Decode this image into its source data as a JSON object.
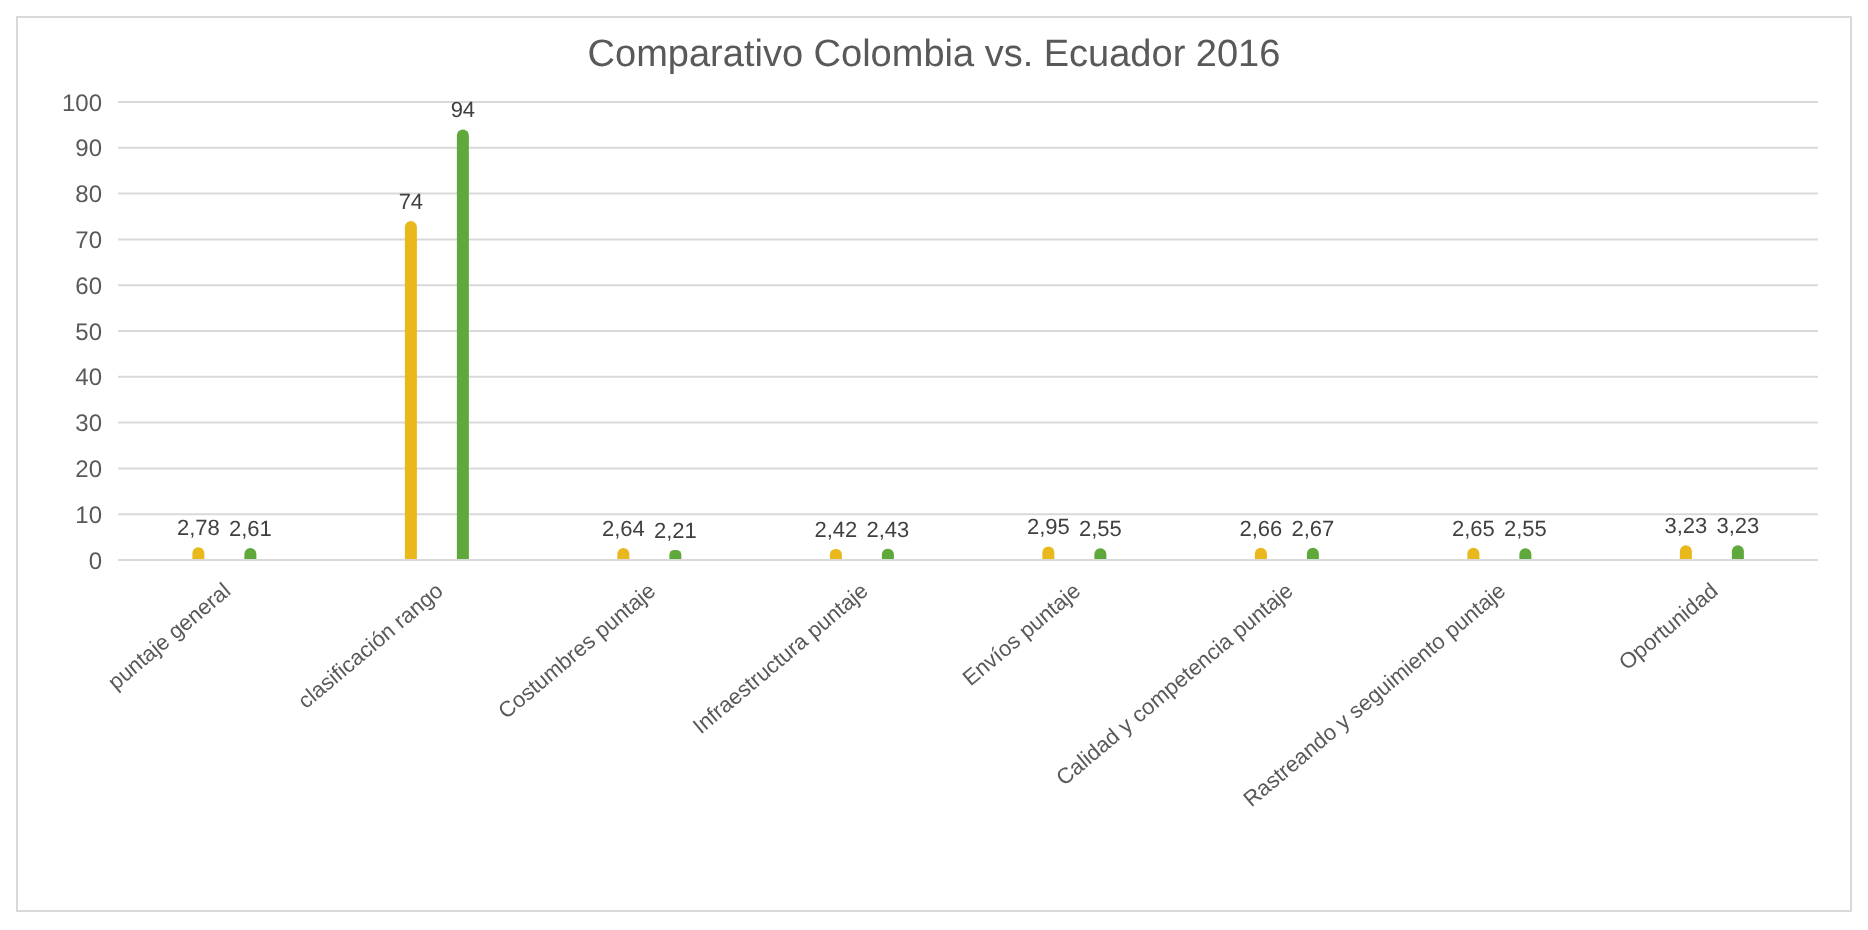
{
  "chart_data": {
    "type": "bar",
    "title": "Comparativo Colombia vs. Ecuador 2016",
    "categories": [
      "puntaje general",
      "clasificación rango",
      "Costumbres puntaje",
      "Infraestructura puntaje",
      "Envíos puntaje",
      "Calidad y competencia puntaje",
      "Rastreando y seguimiento puntaje",
      "Oportunidad"
    ],
    "series": [
      {
        "color": "#e8b81c",
        "values": [
          2.78,
          74,
          2.64,
          2.42,
          2.95,
          2.66,
          2.65,
          3.23
        ],
        "value_labels": [
          "2,78",
          "74",
          "2,64",
          "2,42",
          "2,95",
          "2,66",
          "2,65",
          "3,23"
        ]
      },
      {
        "color": "#5fa83c",
        "values": [
          2.61,
          94,
          2.21,
          2.43,
          2.55,
          2.67,
          2.55,
          3.23
        ],
        "value_labels": [
          "2,61",
          "94",
          "2,21",
          "2,43",
          "2,55",
          "2,67",
          "2,55",
          "3,23"
        ]
      }
    ],
    "ylim": [
      0,
      100
    ],
    "yticks": [
      0,
      10,
      20,
      30,
      40,
      50,
      60,
      70,
      80,
      90,
      100
    ],
    "grid": "y",
    "legend": false
  }
}
